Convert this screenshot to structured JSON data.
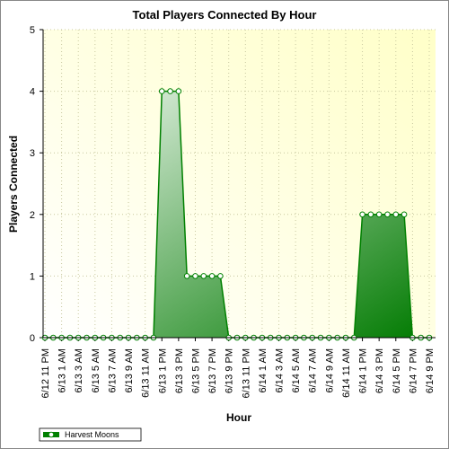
{
  "chart_data": {
    "type": "area",
    "title": "Total Players Connected By Hour",
    "x_label": "Hour",
    "y_label": "Players Connected",
    "categories": [
      "6/12 11 PM",
      null,
      "6/13 1 AM",
      null,
      "6/13 3 AM",
      null,
      "6/13 5 AM",
      null,
      "6/13 7 AM",
      null,
      "6/13 9 AM",
      null,
      "6/13 11 AM",
      null,
      "6/13 1 PM",
      null,
      "6/13 3 PM",
      null,
      "6/13 5 PM",
      null,
      "6/13 7 PM",
      null,
      "6/13 9 PM",
      null,
      "6/13 11 PM",
      null,
      "6/14 1 AM",
      null,
      "6/14 3 AM",
      null,
      "6/14 5 AM",
      null,
      "6/14 7 AM",
      null,
      "6/14 9 AM",
      null,
      "6/14 11 AM",
      null,
      "6/14 1 PM",
      null,
      "6/14 3 PM",
      null,
      "6/14 5 PM",
      null,
      "6/14 7 PM",
      null,
      "6/14 9 PM"
    ],
    "series": [
      {
        "name": "Harvest Moons",
        "color": "#008000",
        "values": [
          0,
          0,
          0,
          0,
          0,
          0,
          0,
          0,
          0,
          0,
          0,
          0,
          0,
          0,
          4,
          4,
          4,
          1,
          1,
          1,
          1,
          1,
          0,
          0,
          0,
          0,
          0,
          0,
          0,
          0,
          0,
          0,
          0,
          0,
          0,
          0,
          0,
          0,
          2,
          2,
          2,
          2,
          2,
          2,
          0,
          0,
          0
        ]
      }
    ],
    "ylim": [
      0,
      5
    ],
    "yticks": [
      0,
      1,
      2,
      3,
      4,
      5
    ],
    "grid": true,
    "legend": "bottom-left"
  }
}
